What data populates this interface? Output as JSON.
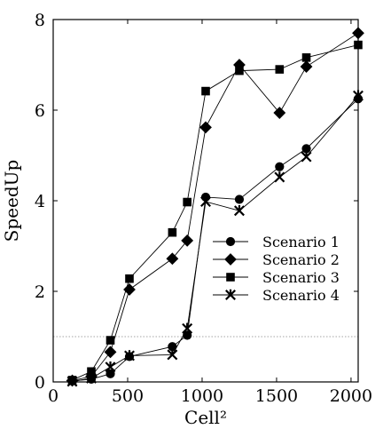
{
  "chart_data": {
    "type": "line",
    "xlabel": "Cell²",
    "ylabel": "SpeedUp",
    "xlim": [
      0,
      2048
    ],
    "ylim": [
      0,
      8
    ],
    "x_ticks": [
      0,
      500,
      1000,
      1500,
      2000
    ],
    "y_ticks": [
      0,
      2,
      4,
      6,
      8
    ],
    "x_tick_labels": [
      "0",
      "500",
      "1000",
      "1500",
      "2000"
    ],
    "y_tick_labels": [
      "0",
      "2",
      "4",
      "6",
      "8"
    ],
    "reference_line": {
      "y": 1,
      "style": "dotted"
    },
    "grid": false,
    "legend_position": "center-right",
    "series": [
      {
        "name": "Scenario 1",
        "marker": "circle",
        "x": [
          128,
          256,
          384,
          512,
          800,
          900,
          1024,
          1250,
          1520,
          1700,
          2048
        ],
        "y": [
          0.02,
          0.06,
          0.18,
          0.56,
          0.78,
          1.03,
          4.08,
          4.03,
          4.75,
          5.15,
          6.25
        ]
      },
      {
        "name": "Scenario 2",
        "marker": "diamond",
        "x": [
          128,
          256,
          384,
          512,
          800,
          900,
          1024,
          1250,
          1520,
          1700,
          2048
        ],
        "y": [
          0.03,
          0.12,
          0.66,
          2.04,
          2.72,
          3.12,
          5.62,
          7.0,
          5.94,
          6.96,
          7.7
        ]
      },
      {
        "name": "Scenario 3",
        "marker": "square",
        "x": [
          128,
          256,
          384,
          512,
          800,
          900,
          1024,
          1250,
          1520,
          1700,
          2048
        ],
        "y": [
          0.04,
          0.23,
          0.92,
          2.28,
          3.3,
          3.97,
          6.42,
          6.87,
          6.9,
          7.16,
          7.44
        ]
      },
      {
        "name": "Scenario 4",
        "marker": "star",
        "x": [
          128,
          256,
          384,
          512,
          800,
          900,
          1024,
          1250,
          1520,
          1700,
          2048
        ],
        "y": [
          0.01,
          0.08,
          0.33,
          0.58,
          0.6,
          1.18,
          3.98,
          3.78,
          4.52,
          4.97,
          6.32
        ]
      }
    ]
  }
}
